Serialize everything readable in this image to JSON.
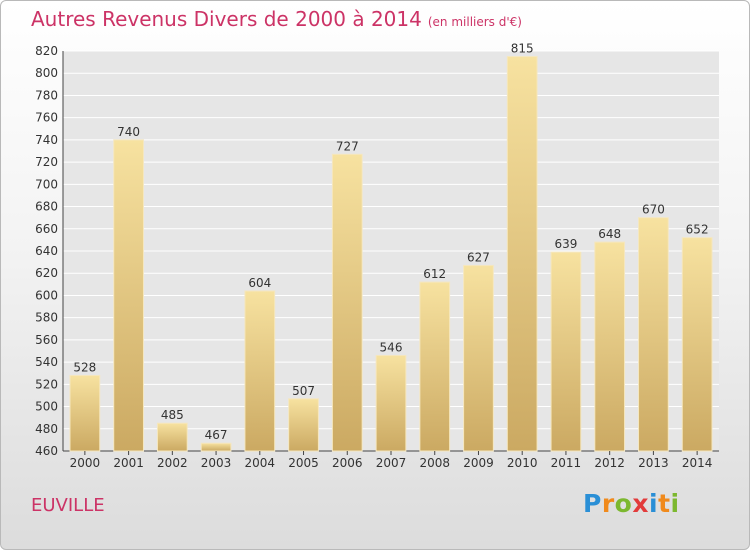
{
  "header": {
    "title": "Autres Revenus Divers de 2000 à 2014",
    "unit": "(en milliers d'€)"
  },
  "footer": {
    "place": "EUVILLE",
    "logo_text": "Proxiti"
  },
  "colors": {
    "title": "#cc3366",
    "bar_light": "#f7e2a0",
    "bar_dark": "#cba962",
    "grid": "#ffffff",
    "plot_bg": "#e6e6e6"
  },
  "chart_data": {
    "type": "bar",
    "title": "Autres Revenus Divers de 2000 à 2014",
    "subtitle": "(en milliers d'€)",
    "xlabel": "",
    "ylabel": "",
    "categories": [
      "2000",
      "2001",
      "2002",
      "2003",
      "2004",
      "2005",
      "2006",
      "2007",
      "2008",
      "2009",
      "2010",
      "2011",
      "2012",
      "2013",
      "2014"
    ],
    "values": [
      528,
      740,
      485,
      467,
      604,
      507,
      727,
      546,
      612,
      627,
      815,
      639,
      648,
      670,
      652
    ],
    "ylim": [
      460,
      820
    ],
    "yticks": [
      460,
      480,
      500,
      520,
      540,
      560,
      580,
      600,
      620,
      640,
      660,
      680,
      700,
      720,
      740,
      760,
      780,
      800,
      820
    ],
    "grid": true,
    "legend": "none"
  }
}
